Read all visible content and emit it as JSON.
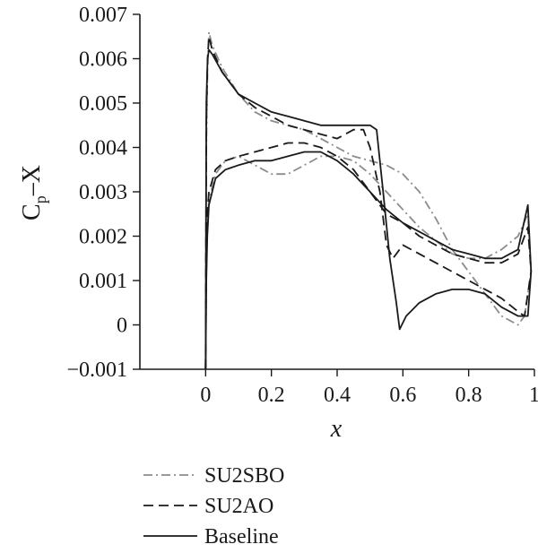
{
  "chart_data": {
    "type": "line",
    "title": "",
    "xlabel": "x",
    "ylabel_main": "C",
    "ylabel_sub": "p",
    "ylabel_suffix": "–X",
    "xlim": [
      -0.2,
      1.0
    ],
    "ylim": [
      -0.001,
      0.007
    ],
    "xticks": [
      0,
      0.2,
      0.4,
      0.6,
      0.8,
      1
    ],
    "xtick_labels": [
      "0",
      "0.2",
      "0.4",
      "0.6",
      "0.8",
      "1"
    ],
    "yticks": [
      -0.001,
      0,
      0.001,
      0.002,
      0.003,
      0.004,
      0.005,
      0.006,
      0.007
    ],
    "ytick_labels": [
      "−0.001",
      "0",
      "0.001",
      "0.002",
      "0.003",
      "0.004",
      "0.005",
      "0.006",
      "0.007"
    ],
    "grid": false,
    "legend_position": "bottom-left",
    "series": [
      {
        "name": "SU2SBO",
        "color": "#8c8c8c",
        "dash": "dashdot",
        "upper": [
          [
            0.0,
            -0.001
          ],
          [
            0.002,
            0.004
          ],
          [
            0.006,
            0.0058
          ],
          [
            0.01,
            0.0066
          ],
          [
            0.02,
            0.0063
          ],
          [
            0.05,
            0.0058
          ],
          [
            0.1,
            0.0052
          ],
          [
            0.15,
            0.0048
          ],
          [
            0.2,
            0.0046
          ],
          [
            0.25,
            0.0045
          ],
          [
            0.3,
            0.0044
          ],
          [
            0.35,
            0.0042
          ],
          [
            0.4,
            0.004
          ],
          [
            0.45,
            0.0038
          ],
          [
            0.5,
            0.0037
          ],
          [
            0.55,
            0.0036
          ],
          [
            0.6,
            0.0034
          ],
          [
            0.65,
            0.003
          ],
          [
            0.7,
            0.0024
          ],
          [
            0.75,
            0.0017
          ],
          [
            0.8,
            0.0012
          ],
          [
            0.85,
            0.0007
          ],
          [
            0.9,
            0.0002
          ],
          [
            0.95,
            0.0
          ],
          [
            0.97,
            0.0002
          ],
          [
            0.99,
            0.0012
          ]
        ],
        "lower": [
          [
            0.0,
            -0.001
          ],
          [
            0.002,
            0.0012
          ],
          [
            0.005,
            0.0022
          ],
          [
            0.01,
            0.0028
          ],
          [
            0.03,
            0.0034
          ],
          [
            0.06,
            0.0037
          ],
          [
            0.1,
            0.0038
          ],
          [
            0.15,
            0.0036
          ],
          [
            0.2,
            0.0034
          ],
          [
            0.25,
            0.0034
          ],
          [
            0.3,
            0.0036
          ],
          [
            0.35,
            0.0038
          ],
          [
            0.4,
            0.0038
          ],
          [
            0.45,
            0.0037
          ],
          [
            0.5,
            0.0034
          ],
          [
            0.55,
            0.003
          ],
          [
            0.6,
            0.0026
          ],
          [
            0.65,
            0.0022
          ],
          [
            0.7,
            0.0019
          ],
          [
            0.75,
            0.0016
          ],
          [
            0.8,
            0.0015
          ],
          [
            0.85,
            0.0015
          ],
          [
            0.9,
            0.0017
          ],
          [
            0.95,
            0.002
          ],
          [
            0.98,
            0.0025
          ],
          [
            0.99,
            0.0012
          ]
        ]
      },
      {
        "name": "SU2AO",
        "color": "#1a1a1a",
        "dash": "dash",
        "upper": [
          [
            0.0,
            -0.001
          ],
          [
            0.002,
            0.0045
          ],
          [
            0.006,
            0.006
          ],
          [
            0.01,
            0.0065
          ],
          [
            0.02,
            0.0062
          ],
          [
            0.05,
            0.0057
          ],
          [
            0.1,
            0.0052
          ],
          [
            0.15,
            0.0049
          ],
          [
            0.2,
            0.0047
          ],
          [
            0.25,
            0.0045
          ],
          [
            0.3,
            0.0044
          ],
          [
            0.35,
            0.0043
          ],
          [
            0.4,
            0.0042
          ],
          [
            0.45,
            0.0044
          ],
          [
            0.48,
            0.0044
          ],
          [
            0.5,
            0.004
          ],
          [
            0.53,
            0.003
          ],
          [
            0.55,
            0.0018
          ],
          [
            0.57,
            0.0015
          ],
          [
            0.6,
            0.0018
          ],
          [
            0.65,
            0.0016
          ],
          [
            0.7,
            0.0014
          ],
          [
            0.75,
            0.0012
          ],
          [
            0.8,
            0.001
          ],
          [
            0.85,
            0.0008
          ],
          [
            0.9,
            0.0006
          ],
          [
            0.95,
            0.0003
          ],
          [
            0.97,
            0.0002
          ],
          [
            0.99,
            0.0012
          ]
        ],
        "lower": [
          [
            0.0,
            -0.001
          ],
          [
            0.002,
            0.0015
          ],
          [
            0.005,
            0.0025
          ],
          [
            0.01,
            0.003
          ],
          [
            0.03,
            0.0035
          ],
          [
            0.06,
            0.0037
          ],
          [
            0.1,
            0.0038
          ],
          [
            0.15,
            0.0039
          ],
          [
            0.2,
            0.004
          ],
          [
            0.25,
            0.0041
          ],
          [
            0.3,
            0.0041
          ],
          [
            0.35,
            0.004
          ],
          [
            0.4,
            0.0038
          ],
          [
            0.45,
            0.0035
          ],
          [
            0.5,
            0.003
          ],
          [
            0.55,
            0.0025
          ],
          [
            0.6,
            0.0023
          ],
          [
            0.65,
            0.002
          ],
          [
            0.7,
            0.0018
          ],
          [
            0.75,
            0.0016
          ],
          [
            0.8,
            0.0015
          ],
          [
            0.85,
            0.0014
          ],
          [
            0.9,
            0.0014
          ],
          [
            0.95,
            0.0016
          ],
          [
            0.98,
            0.0022
          ],
          [
            0.99,
            0.0012
          ]
        ]
      },
      {
        "name": "Baseline",
        "color": "#1a1a1a",
        "dash": "solid",
        "upper": [
          [
            0.0,
            -0.001
          ],
          [
            0.002,
            0.005
          ],
          [
            0.006,
            0.006
          ],
          [
            0.01,
            0.0062
          ],
          [
            0.02,
            0.0061
          ],
          [
            0.05,
            0.0057
          ],
          [
            0.1,
            0.0052
          ],
          [
            0.15,
            0.005
          ],
          [
            0.2,
            0.0048
          ],
          [
            0.25,
            0.0047
          ],
          [
            0.3,
            0.0046
          ],
          [
            0.35,
            0.0045
          ],
          [
            0.4,
            0.0045
          ],
          [
            0.45,
            0.0045
          ],
          [
            0.5,
            0.0045
          ],
          [
            0.52,
            0.0044
          ],
          [
            0.54,
            0.003
          ],
          [
            0.56,
            0.0015
          ],
          [
            0.58,
            0.0005
          ],
          [
            0.59,
            -0.0001
          ],
          [
            0.61,
            0.0002
          ],
          [
            0.65,
            0.0005
          ],
          [
            0.7,
            0.0007
          ],
          [
            0.75,
            0.0008
          ],
          [
            0.8,
            0.0008
          ],
          [
            0.85,
            0.0007
          ],
          [
            0.9,
            0.0004
          ],
          [
            0.95,
            0.0002
          ],
          [
            0.98,
            0.0002
          ],
          [
            0.99,
            0.0012
          ]
        ],
        "lower": [
          [
            0.0,
            -0.001
          ],
          [
            0.002,
            0.001
          ],
          [
            0.005,
            0.002
          ],
          [
            0.01,
            0.0027
          ],
          [
            0.03,
            0.0033
          ],
          [
            0.06,
            0.0035
          ],
          [
            0.1,
            0.0036
          ],
          [
            0.15,
            0.0037
          ],
          [
            0.2,
            0.0037
          ],
          [
            0.25,
            0.0038
          ],
          [
            0.3,
            0.0039
          ],
          [
            0.35,
            0.0039
          ],
          [
            0.4,
            0.0037
          ],
          [
            0.45,
            0.0034
          ],
          [
            0.5,
            0.003
          ],
          [
            0.55,
            0.0026
          ],
          [
            0.6,
            0.0023
          ],
          [
            0.65,
            0.0021
          ],
          [
            0.7,
            0.0019
          ],
          [
            0.75,
            0.0017
          ],
          [
            0.8,
            0.0016
          ],
          [
            0.85,
            0.0015
          ],
          [
            0.9,
            0.0015
          ],
          [
            0.95,
            0.0017
          ],
          [
            0.98,
            0.0027
          ],
          [
            0.99,
            0.0012
          ]
        ]
      }
    ]
  }
}
